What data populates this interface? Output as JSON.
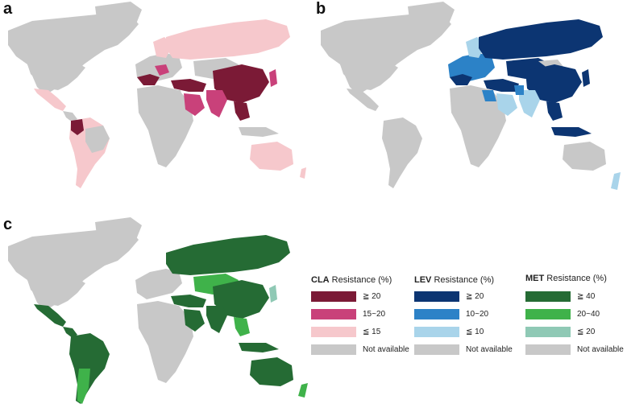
{
  "panels": [
    {
      "id": "a",
      "label": "a"
    },
    {
      "id": "b",
      "label": "b"
    },
    {
      "id": "c",
      "label": "c"
    }
  ],
  "legends": [
    {
      "drug": "CLA",
      "suffix": " Resistance (%)",
      "items": [
        {
          "label": "≧ 20",
          "color": "#7b1a36"
        },
        {
          "label": "15~20",
          "color": "#c9417a"
        },
        {
          "label": "≦ 15",
          "color": "#f6c8cc"
        },
        {
          "label": "Not available",
          "color": "#c8c8c8"
        }
      ]
    },
    {
      "drug": "LEV",
      "suffix": " Resistance (%)",
      "items": [
        {
          "label": "≧ 20",
          "color": "#0c3572"
        },
        {
          "label": "10~20",
          "color": "#2c82c7"
        },
        {
          "label": "≦ 10",
          "color": "#a9d4ea"
        },
        {
          "label": "Not available",
          "color": "#c8c8c8"
        }
      ]
    },
    {
      "drug": "MET",
      "suffix": " Resistance (%)",
      "items": [
        {
          "label": "≧ 40",
          "color": "#256b34"
        },
        {
          "label": "20~40",
          "color": "#3fb24a"
        },
        {
          "label": "≦ 20",
          "color": "#8fc9b5"
        },
        {
          "label": "Not available",
          "color": "#c8c8c8"
        }
      ]
    }
  ]
}
